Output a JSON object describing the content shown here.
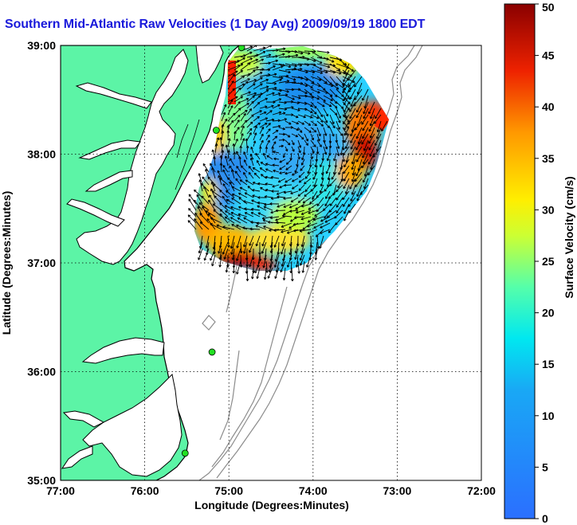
{
  "title": "Southern Mid-Atlantic Raw Velocities (1 Day Avg) 2009/09/19 1800 EDT",
  "map": {
    "xlabel": "Longitude (Degrees:Minutes)",
    "ylabel": "Latitude (Degrees:Minutes)",
    "x_ticks": [
      "77:00",
      "76:00",
      "75:00",
      "74:00",
      "73:00",
      "72:00"
    ],
    "y_ticks": [
      "39:00",
      "38:00",
      "37:00",
      "36:00",
      "35:00"
    ],
    "lon_range": [
      -77,
      -72
    ],
    "lat_range": [
      35,
      39
    ],
    "grid": "dotted",
    "colors": {
      "land": "#5cf4a6",
      "ocean": "#ffffff",
      "coastline": "#000000",
      "bathymetry": "#8c8c8c",
      "site_marker": "#22e022",
      "arrow": "#000000"
    },
    "sites": [
      {
        "lon": -74.85,
        "lat": 38.98
      },
      {
        "lon": -75.15,
        "lat": 38.22
      },
      {
        "lon": -75.2,
        "lat": 36.18
      },
      {
        "lon": -75.52,
        "lat": 35.25
      }
    ]
  },
  "colorbar": {
    "label": "Surface Velocity (cm/s)",
    "ticks": [
      "0",
      "5",
      "10",
      "15",
      "20",
      "25",
      "30",
      "35",
      "40",
      "45",
      "50"
    ],
    "range": [
      0,
      50
    ],
    "colormap": "jet"
  }
}
